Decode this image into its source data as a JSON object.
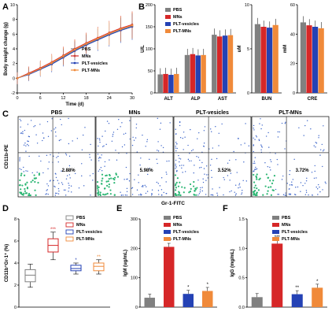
{
  "panels": {
    "A": "A",
    "B": "B",
    "C": "C",
    "D": "D",
    "E": "E",
    "F": "F"
  },
  "colors": {
    "PBS": "#808080",
    "MNs": "#d62728",
    "PLT-vesicles": "#2442b5",
    "PLT-MNs": "#f08a3a"
  },
  "chart_data": [
    {
      "panel": "A",
      "type": "line",
      "xlabel": "Time (d)",
      "ylabel": "Body weight change (g)",
      "x": [
        0,
        3,
        6,
        9,
        12,
        15,
        18,
        21,
        24,
        27,
        30
      ],
      "xticks": [
        "0",
        "6",
        "12",
        "18",
        "24",
        "30"
      ],
      "xlim": [
        0,
        30
      ],
      "ylim": [
        -2,
        10
      ],
      "yticks": [
        "-2",
        "0",
        "2",
        "4",
        "6",
        "8",
        "10"
      ],
      "series": [
        {
          "name": "PBS",
          "marker": "square",
          "values": [
            0.0,
            0.6,
            1.3,
            2.0,
            2.9,
            3.8,
            4.6,
            5.3,
            6.0,
            6.6,
            7.1
          ]
        },
        {
          "name": "MNs",
          "marker": "circle",
          "values": [
            0.0,
            0.7,
            1.4,
            2.2,
            3.1,
            4.0,
            4.8,
            5.5,
            6.2,
            6.8,
            7.3
          ]
        },
        {
          "name": "PLT-vesicles",
          "marker": "triangle",
          "values": [
            0.0,
            0.5,
            1.2,
            1.9,
            2.8,
            3.7,
            4.5,
            5.2,
            5.9,
            6.5,
            7.0
          ]
        },
        {
          "name": "PLT-MNs",
          "marker": "triangle-down",
          "values": [
            0.0,
            0.6,
            1.3,
            2.1,
            3.0,
            3.9,
            4.7,
            5.4,
            6.1,
            6.7,
            7.2
          ]
        }
      ]
    },
    {
      "panel": "B-liver",
      "type": "bar",
      "ylabel": "U/L",
      "ylim": [
        0,
        200
      ],
      "yticks": [
        "0",
        "50",
        "100",
        "150",
        "200"
      ],
      "categories": [
        "ALT",
        "ALP",
        "AST"
      ],
      "series": [
        {
          "name": "PBS",
          "values": [
            42,
            86,
            132
          ]
        },
        {
          "name": "MNs",
          "values": [
            43,
            88,
            128
          ]
        },
        {
          "name": "PLT-vesicles",
          "values": [
            41,
            85,
            130
          ]
        },
        {
          "name": "PLT-MNs",
          "values": [
            43,
            86,
            131
          ]
        }
      ]
    },
    {
      "panel": "B-bun",
      "type": "bar",
      "ylabel": "uM",
      "ylim": [
        0,
        10
      ],
      "yticks": [
        "0",
        "5",
        "10"
      ],
      "categories": [
        "BUN"
      ],
      "series": [
        {
          "name": "PBS",
          "values": [
            7.8
          ]
        },
        {
          "name": "MNs",
          "values": [
            7.5
          ]
        },
        {
          "name": "PLT-vesicles",
          "values": [
            7.4
          ]
        },
        {
          "name": "PLT-MNs",
          "values": [
            7.7
          ]
        }
      ]
    },
    {
      "panel": "B-cre",
      "type": "bar",
      "ylabel": "mM",
      "ylim": [
        0,
        60
      ],
      "yticks": [
        "0",
        "20",
        "40",
        "60"
      ],
      "categories": [
        "CRE"
      ],
      "series": [
        {
          "name": "PBS",
          "values": [
            48
          ]
        },
        {
          "name": "MNs",
          "values": [
            46
          ]
        },
        {
          "name": "PLT-vesicles",
          "values": [
            45
          ]
        },
        {
          "name": "PLT-MNs",
          "values": [
            44
          ]
        }
      ]
    },
    {
      "panel": "C",
      "type": "scatter",
      "xlabel": "Gr-1-FITC",
      "ylabel": "CD11b-PE",
      "plots": [
        {
          "title": "PBS",
          "quadrant_value": "2.88%"
        },
        {
          "title": "MNs",
          "quadrant_value": "5.98%"
        },
        {
          "title": "PLT-vesicles",
          "quadrant_value": "3.52%"
        },
        {
          "title": "PLT-MNs",
          "quadrant_value": "3.72%"
        }
      ]
    },
    {
      "panel": "D",
      "type": "box",
      "ylabel": "CD11b⁺Gr-1⁺ (%)",
      "ylim": [
        0,
        8
      ],
      "yticks": [
        "0",
        "2",
        "4",
        "6",
        "8"
      ],
      "groups": [
        {
          "name": "PBS",
          "whisker_low": 1.8,
          "q1": 2.3,
          "median": 2.9,
          "q3": 3.4,
          "whisker_high": 3.9,
          "sig": ""
        },
        {
          "name": "MNs",
          "whisker_low": 4.3,
          "q1": 5.0,
          "median": 5.6,
          "q3": 6.2,
          "whisker_high": 6.8,
          "sig": "***"
        },
        {
          "name": "PLT-vesicles",
          "whisker_low": 3.0,
          "q1": 3.3,
          "median": 3.5,
          "q3": 3.8,
          "whisker_high": 4.0,
          "sig": "*"
        },
        {
          "name": "PLT-MNs",
          "whisker_low": 3.0,
          "q1": 3.3,
          "median": 3.7,
          "q3": 4.0,
          "whisker_high": 4.3,
          "sig": "**"
        }
      ]
    },
    {
      "panel": "E",
      "type": "bar",
      "ylabel": "IgM (ug/mL)",
      "ylim": [
        0,
        300
      ],
      "yticks": [
        "0",
        "100",
        "200",
        "300"
      ],
      "groups": [
        "PBS",
        "MNs",
        "PLT-vesicles",
        "PLT-MNs"
      ],
      "values": [
        32,
        205,
        45,
        55
      ],
      "sig": [
        "",
        "***",
        "*",
        "*"
      ]
    },
    {
      "panel": "F",
      "type": "bar",
      "ylabel": "IgG (mg/mL)",
      "ylim": [
        0,
        1.5
      ],
      "yticks": [
        "0.0",
        "0.5",
        "1.0",
        "1.5"
      ],
      "groups": [
        "PBS",
        "MNs",
        "PLT-vesicles",
        "PLT-MNs"
      ],
      "values": [
        0.17,
        1.08,
        0.22,
        0.33
      ],
      "sig": [
        "",
        "***",
        "**",
        "*"
      ]
    }
  ]
}
